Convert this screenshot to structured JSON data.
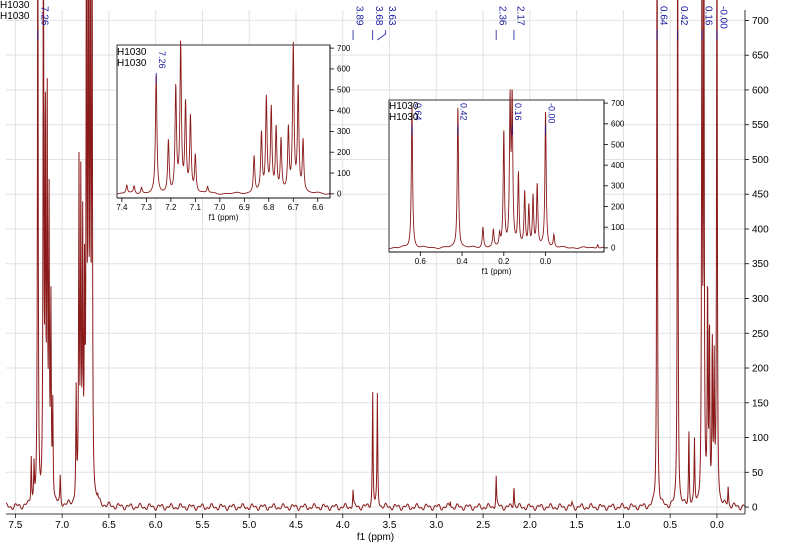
{
  "sample": {
    "line1": "H1030",
    "line2": "H1030"
  },
  "colors": {
    "trace": "#8b1a1a",
    "peak_label": "#1a1aa0",
    "grid": "#e2e2e2",
    "axis": "#000000"
  },
  "chart_data": {
    "type": "line",
    "main": {
      "xlabel": "f1 (ppm)",
      "xlim": [
        7.6,
        -0.3
      ],
      "ylim": [
        -10,
        715
      ],
      "xticks": [
        7.5,
        7.0,
        6.5,
        6.0,
        5.5,
        5.0,
        4.5,
        4.0,
        3.5,
        3.0,
        2.5,
        2.0,
        1.5,
        1.0,
        0.5,
        0.0
      ],
      "tick_labels": [
        "7.5",
        "7.0",
        "6.5",
        "6.0",
        "5.5",
        "5.0",
        "4.5",
        "4.0",
        "3.5",
        "3.0",
        "2.5",
        "2.0",
        "1.5",
        "1.0",
        "0.5",
        "0.0"
      ],
      "yticks": [
        0,
        50,
        100,
        150,
        200,
        250,
        300,
        350,
        400,
        450,
        500,
        550,
        600,
        650,
        700
      ],
      "peak_labels": [
        {
          "x": 7.26,
          "label": "7.26"
        },
        {
          "x": 3.89,
          "label": "3.89"
        },
        {
          "x": 3.68,
          "label": "3.68"
        },
        {
          "x": 3.63,
          "label": "3.63"
        },
        {
          "x": 2.36,
          "label": "2.36"
        },
        {
          "x": 2.17,
          "label": "2.17"
        },
        {
          "x": 0.64,
          "label": "0.64"
        },
        {
          "x": 0.42,
          "label": "0.42"
        },
        {
          "x": 0.16,
          "label": "0.16"
        },
        {
          "x": 0.0,
          "label": "-0.00"
        }
      ],
      "peaks": [
        {
          "x": 7.33,
          "h": 70
        },
        {
          "x": 7.3,
          "h": 55
        },
        {
          "x": 7.26,
          "h": 900
        },
        {
          "x": 7.2,
          "h": 900
        },
        {
          "x": 7.18,
          "h": 560
        },
        {
          "x": 7.16,
          "h": 580
        },
        {
          "x": 7.14,
          "h": 430
        },
        {
          "x": 7.12,
          "h": 280
        },
        {
          "x": 7.1,
          "h": 140
        },
        {
          "x": 7.02,
          "h": 40
        },
        {
          "x": 6.85,
          "h": 160
        },
        {
          "x": 6.82,
          "h": 470
        },
        {
          "x": 6.8,
          "h": 440
        },
        {
          "x": 6.78,
          "h": 380
        },
        {
          "x": 6.76,
          "h": 300
        },
        {
          "x": 6.74,
          "h": 900
        },
        {
          "x": 6.72,
          "h": 900
        },
        {
          "x": 6.7,
          "h": 900
        },
        {
          "x": 6.68,
          "h": 900
        },
        {
          "x": 6.62,
          "h": 8
        },
        {
          "x": 3.89,
          "h": 25
        },
        {
          "x": 3.68,
          "h": 165
        },
        {
          "x": 3.63,
          "h": 160
        },
        {
          "x": 2.85,
          "h": 10
        },
        {
          "x": 2.36,
          "h": 45
        },
        {
          "x": 2.17,
          "h": 32
        },
        {
          "x": 1.55,
          "h": 5
        },
        {
          "x": 0.64,
          "h": 900
        },
        {
          "x": 0.42,
          "h": 900
        },
        {
          "x": 0.3,
          "h": 110
        },
        {
          "x": 0.24,
          "h": 90
        },
        {
          "x": 0.16,
          "h": 900
        },
        {
          "x": 0.14,
          "h": 900
        },
        {
          "x": 0.1,
          "h": 320
        },
        {
          "x": 0.08,
          "h": 260
        },
        {
          "x": 0.05,
          "h": 230
        },
        {
          "x": 0.03,
          "h": 200
        },
        {
          "x": 0.0,
          "h": 900
        },
        {
          "x": -0.12,
          "h": 30
        }
      ]
    },
    "inset_aromatic": {
      "xlabel": "f1 (ppm)",
      "xlim": [
        7.42,
        6.55
      ],
      "ylim": [
        -20,
        715
      ],
      "xticks": [
        7.4,
        7.3,
        7.2,
        7.1,
        7.0,
        6.9,
        6.8,
        6.7,
        6.6
      ],
      "tick_labels": [
        "7.4",
        "7.3",
        "7.2",
        "7.1",
        "7.0",
        "6.9",
        "6.8",
        "6.7",
        "6.6"
      ],
      "yticks": [
        0,
        100,
        200,
        300,
        400,
        500,
        600,
        700
      ],
      "peak_labels": [
        {
          "x": 7.26,
          "label": "7.26"
        }
      ],
      "peaks": [
        {
          "x": 7.38,
          "h": 40
        },
        {
          "x": 7.35,
          "h": 35
        },
        {
          "x": 7.32,
          "h": 30
        },
        {
          "x": 7.26,
          "h": 570
        },
        {
          "x": 7.21,
          "h": 250
        },
        {
          "x": 7.18,
          "h": 500
        },
        {
          "x": 7.16,
          "h": 700
        },
        {
          "x": 7.14,
          "h": 420
        },
        {
          "x": 7.12,
          "h": 360
        },
        {
          "x": 7.1,
          "h": 180
        },
        {
          "x": 7.05,
          "h": 30
        },
        {
          "x": 6.86,
          "h": 180
        },
        {
          "x": 6.83,
          "h": 280
        },
        {
          "x": 6.81,
          "h": 450
        },
        {
          "x": 6.79,
          "h": 400
        },
        {
          "x": 6.77,
          "h": 310
        },
        {
          "x": 6.75,
          "h": 250
        },
        {
          "x": 6.72,
          "h": 300
        },
        {
          "x": 6.7,
          "h": 700
        },
        {
          "x": 6.68,
          "h": 500
        },
        {
          "x": 6.66,
          "h": 250
        }
      ]
    },
    "inset_aliphatic": {
      "xlabel": "f1 (ppm)",
      "xlim": [
        0.75,
        -0.28
      ],
      "ylim": [
        -20,
        715
      ],
      "xticks": [
        0.6,
        0.4,
        0.2,
        0.0
      ],
      "tick_labels": [
        "0.6",
        "0.4",
        "0.2",
        "0.0"
      ],
      "yticks": [
        0,
        100,
        200,
        300,
        400,
        500,
        600,
        700
      ],
      "peak_labels": [
        {
          "x": 0.64,
          "label": "0.64"
        },
        {
          "x": 0.42,
          "label": "0.42"
        },
        {
          "x": 0.16,
          "label": "0.16"
        },
        {
          "x": 0.0,
          "label": "-0.00"
        }
      ],
      "peaks": [
        {
          "x": 0.64,
          "h": 690
        },
        {
          "x": 0.42,
          "h": 690
        },
        {
          "x": 0.3,
          "h": 100
        },
        {
          "x": 0.25,
          "h": 80
        },
        {
          "x": 0.22,
          "h": 60
        },
        {
          "x": 0.2,
          "h": 560
        },
        {
          "x": 0.17,
          "h": 680
        },
        {
          "x": 0.16,
          "h": 690
        },
        {
          "x": 0.13,
          "h": 350
        },
        {
          "x": 0.1,
          "h": 260
        },
        {
          "x": 0.08,
          "h": 200
        },
        {
          "x": 0.06,
          "h": 240
        },
        {
          "x": 0.04,
          "h": 300
        },
        {
          "x": 0.0,
          "h": 660
        },
        {
          "x": -0.04,
          "h": 60
        },
        {
          "x": -0.25,
          "h": 20
        }
      ]
    }
  }
}
